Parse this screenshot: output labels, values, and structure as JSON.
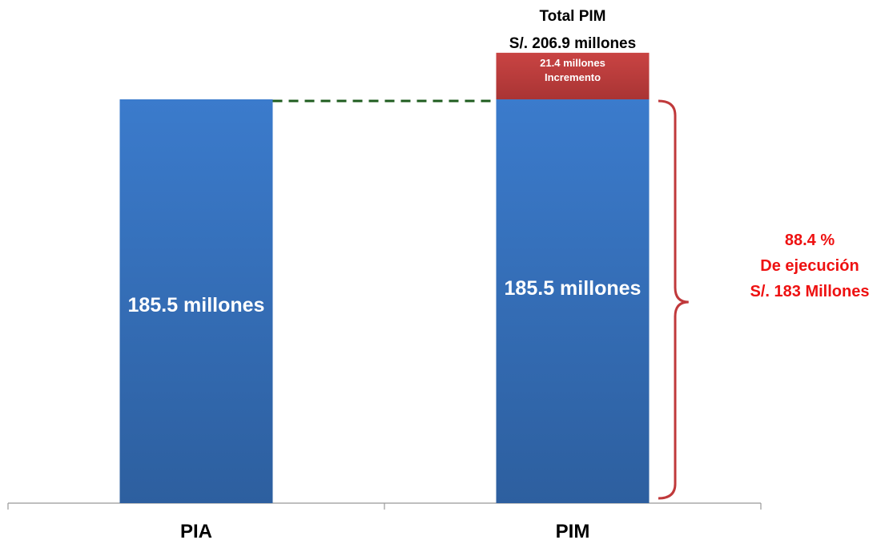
{
  "chart_data": {
    "type": "bar",
    "stacked": true,
    "categories": [
      "PIA",
      "PIM"
    ],
    "series": [
      {
        "values": [
          185.5,
          185.5
        ],
        "color": "#3a75c4",
        "labels": [
          "185.5 millones",
          "185.5 millones"
        ]
      },
      {
        "values": [
          0,
          21.4
        ],
        "color": "#c0393b",
        "labels": [
          "",
          "21.4 millones\nIncremento"
        ]
      }
    ],
    "increment_label_line1": "21.4 millones",
    "increment_label_line2": "Incremento",
    "total_label_line1": "Total PIM",
    "total_label_line2": "S/. 206.9 millones",
    "execution_label_line1": "88.4 %",
    "execution_label_line2": "De ejecución",
    "execution_label_line3": "S/. 183 Millones",
    "execution_color": "#ee1111",
    "brace_color": "#c0393b",
    "dashed_line_color": "#1e5c1e",
    "ylim": [
      0,
      206.9
    ],
    "grid": false,
    "legend": "none"
  }
}
